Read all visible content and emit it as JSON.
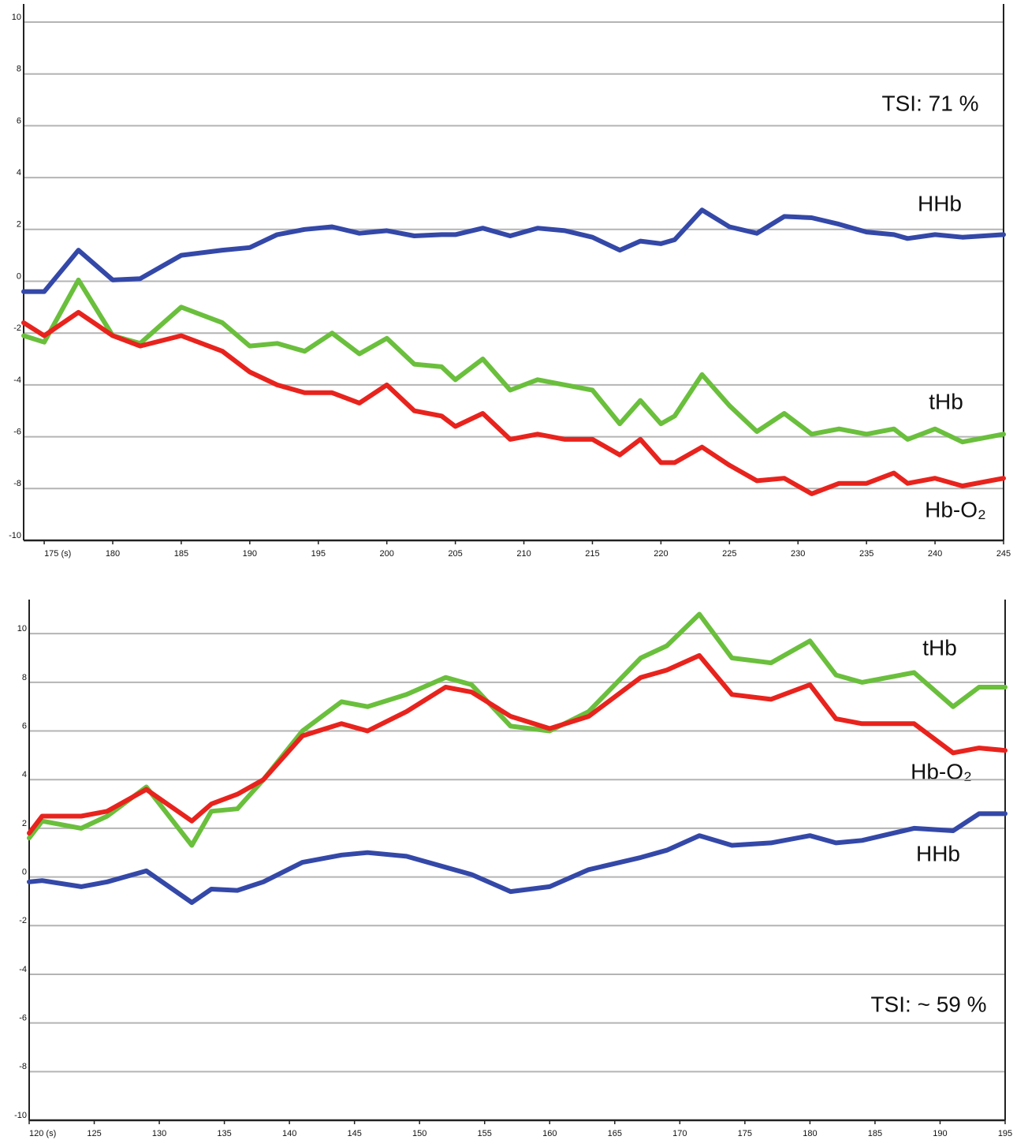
{
  "chart_data": [
    {
      "type": "line",
      "annotation": "TSI: 71 %",
      "x": [
        173.5,
        175,
        177.5,
        180,
        182,
        185,
        188,
        190,
        192,
        194,
        196,
        198,
        200,
        202,
        204,
        205,
        207,
        209,
        211,
        213,
        215,
        217,
        218.5,
        220,
        221,
        223,
        225,
        227,
        229,
        231,
        233,
        235,
        237,
        238,
        240,
        242,
        245
      ],
      "series": [
        {
          "name": "HHb",
          "color": "#3448a8",
          "values": [
            -0.4,
            -0.4,
            1.2,
            0.05,
            0.1,
            1.0,
            1.2,
            1.3,
            1.8,
            2.0,
            2.1,
            1.85,
            1.95,
            1.75,
            1.8,
            1.8,
            2.05,
            1.75,
            2.05,
            1.95,
            1.7,
            1.2,
            1.55,
            1.45,
            1.6,
            2.75,
            2.1,
            1.85,
            2.5,
            2.45,
            2.2,
            1.9,
            1.8,
            1.65,
            1.8,
            1.7,
            1.8
          ]
        },
        {
          "name": "tHb",
          "color": "#6abf3c",
          "values": [
            -2.1,
            -2.35,
            0.05,
            -2.1,
            -2.4,
            -1.0,
            -1.6,
            -2.5,
            -2.4,
            -2.7,
            -2.0,
            -2.8,
            -2.2,
            -3.2,
            -3.3,
            -3.8,
            -3.0,
            -4.2,
            -3.8,
            -4.0,
            -4.2,
            -5.5,
            -4.6,
            -5.5,
            -5.2,
            -3.6,
            -4.8,
            -5.8,
            -5.1,
            -5.9,
            -5.7,
            -5.9,
            -5.7,
            -6.1,
            -5.7,
            -6.2,
            -5.9
          ]
        },
        {
          "name": "Hb-O₂",
          "color": "#e8231d",
          "values": [
            -1.6,
            -2.1,
            -1.2,
            -2.1,
            -2.5,
            -2.1,
            -2.7,
            -3.5,
            -4.0,
            -4.3,
            -4.3,
            -4.7,
            -4.0,
            -5.0,
            -5.2,
            -5.6,
            -5.1,
            -6.1,
            -5.9,
            -6.1,
            -6.1,
            -6.7,
            -6.1,
            -7.0,
            -7.0,
            -6.4,
            -7.1,
            -7.7,
            -7.6,
            -8.2,
            -7.8,
            -7.8,
            -7.4,
            -7.8,
            -7.6,
            -7.9,
            -7.6
          ]
        }
      ],
      "xlim": [
        173.5,
        245
      ],
      "xticks": [
        {
          "value": 175,
          "label": "175 (s)"
        },
        180,
        185,
        190,
        195,
        200,
        205,
        210,
        215,
        220,
        225,
        230,
        235,
        240,
        245
      ],
      "ylim": [
        -10,
        10.7
      ],
      "yticks": [
        10,
        8,
        6,
        4,
        2,
        0,
        -2,
        -4,
        -6,
        -8,
        -10
      ],
      "grid": true
    },
    {
      "type": "line",
      "annotation": "TSI: ~ 59 %",
      "x": [
        120,
        121,
        124,
        126,
        129,
        132.5,
        134,
        136,
        138,
        141,
        144,
        146,
        149,
        152,
        154,
        157,
        160,
        163,
        167,
        169,
        171.5,
        174,
        177,
        180,
        182,
        184,
        188,
        191,
        193,
        195
      ],
      "series": [
        {
          "name": "HHb",
          "color": "#3448a8",
          "values": [
            -0.2,
            -0.15,
            -0.4,
            -0.2,
            0.25,
            -1.05,
            -0.5,
            -0.55,
            -0.2,
            0.6,
            0.9,
            1.0,
            0.85,
            0.4,
            0.1,
            -0.6,
            -0.4,
            0.3,
            0.8,
            1.1,
            1.7,
            1.3,
            1.4,
            1.7,
            1.4,
            1.5,
            2.0,
            1.9,
            2.6,
            2.6
          ]
        },
        {
          "name": "tHb",
          "color": "#6abf3c",
          "values": [
            1.6,
            2.3,
            2.0,
            2.5,
            3.7,
            1.3,
            2.7,
            2.8,
            4.0,
            6.0,
            7.2,
            7.0,
            7.5,
            8.2,
            7.9,
            6.2,
            6.0,
            6.8,
            9.0,
            9.5,
            10.8,
            9.0,
            8.8,
            9.7,
            8.3,
            8.0,
            8.4,
            7.0,
            7.8,
            7.8
          ]
        },
        {
          "name": "Hb-O₂",
          "color": "#e8231d",
          "values": [
            1.8,
            2.5,
            2.5,
            2.7,
            3.6,
            2.3,
            3.0,
            3.4,
            4.0,
            5.8,
            6.3,
            6.0,
            6.8,
            7.8,
            7.6,
            6.6,
            6.1,
            6.6,
            8.2,
            8.5,
            9.1,
            7.5,
            7.3,
            7.9,
            6.5,
            6.3,
            6.3,
            5.1,
            5.3,
            5.2
          ]
        }
      ],
      "xlim": [
        120,
        195
      ],
      "xticks": [
        {
          "value": 120,
          "label": "120 (s)"
        },
        125,
        130,
        135,
        140,
        145,
        150,
        155,
        160,
        165,
        170,
        175,
        180,
        185,
        190,
        195
      ],
      "ylim": [
        -10,
        11.4
      ],
      "yticks": [
        10,
        8,
        6,
        4,
        2,
        0,
        -2,
        -4,
        -6,
        -8,
        -10
      ],
      "grid": true
    }
  ]
}
